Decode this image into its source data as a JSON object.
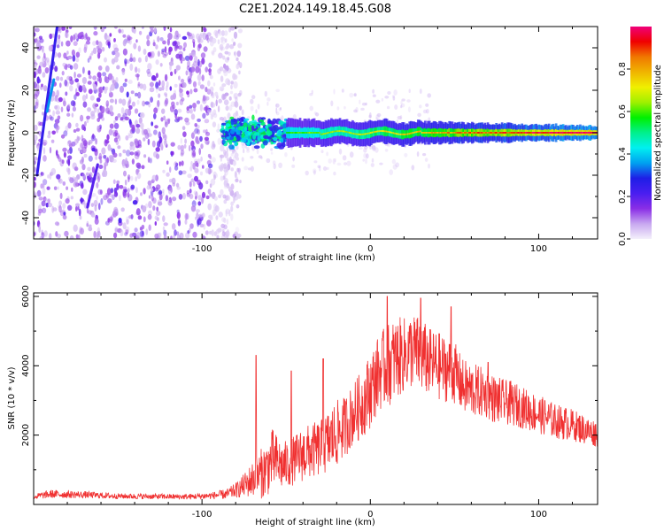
{
  "figure_title": "C2E1.2024.149.18.45.G08",
  "chart_data": [
    {
      "type": "heatmap",
      "panel": "spectrogram",
      "xlabel": "Height of straight line (km)",
      "ylabel": "Frequency (Hz)",
      "xlim": [
        -200,
        135
      ],
      "ylim": [
        -50,
        50
      ],
      "x_ticks": [
        -100,
        0,
        100
      ],
      "x_tick_labels": [
        "-100",
        "0",
        "100"
      ],
      "y_ticks": [
        -40,
        -20,
        0,
        20,
        40
      ],
      "y_tick_labels": [
        "-40",
        "-20",
        "0",
        "20",
        "40"
      ],
      "colorbar": {
        "label": "Normalized spectral amplitude",
        "range": [
          0,
          1
        ],
        "ticks": [
          0.0,
          0.2,
          0.4,
          0.6,
          0.8
        ],
        "tick_labels": [
          "0.0",
          "0.2",
          "0.4",
          "0.6",
          "0.8"
        ],
        "colormap": [
          "#f4f0fb",
          "#c8a8f0",
          "#8a2ee6",
          "#4a1ef0",
          "#1e1ee6",
          "#00a0f0",
          "#00f0f0",
          "#00f08c",
          "#00f000",
          "#a0f000",
          "#f0f000",
          "#f0b400",
          "#f07800",
          "#f00000",
          "#f0007a"
        ]
      },
      "regions": [
        {
          "name": "noise",
          "x_range": [
            -200,
            -85
          ],
          "y_range": [
            -50,
            50
          ],
          "amplitude_range": [
            0.05,
            0.2
          ]
        },
        {
          "name": "signal_onset",
          "x_range": [
            -88,
            -50
          ],
          "y_center": 0,
          "half_width_hz": 5,
          "amplitude_range": [
            0.2,
            0.55
          ]
        },
        {
          "name": "carrier",
          "x_range": [
            -50,
            135
          ],
          "y_center": 0,
          "half_width_hz": 2,
          "amplitude_range": [
            0.4,
            1.0
          ]
        }
      ],
      "streaks": [
        {
          "x": [
            -198,
            -186
          ],
          "y": [
            -20,
            50
          ],
          "amplitude": 0.25
        },
        {
          "x": [
            -192,
            -188
          ],
          "y": [
            10,
            25
          ],
          "amplitude": 0.35
        },
        {
          "x": [
            -168,
            -162
          ],
          "y": [
            -35,
            -15
          ],
          "amplitude": 0.2
        }
      ],
      "grid": false
    },
    {
      "type": "line",
      "panel": "snr",
      "xlabel": "Height of straight line (km)",
      "ylabel": "SNR (10 * v/v)",
      "xlim": [
        -200,
        135
      ],
      "ylim": [
        0,
        6100
      ],
      "x_ticks": [
        -100,
        0,
        100
      ],
      "x_tick_labels": [
        "-100",
        "0",
        "100"
      ],
      "y_ticks": [
        2000,
        4000,
        6000
      ],
      "y_tick_labels": [
        "2000",
        "4000",
        "6000"
      ],
      "series": [
        {
          "color": "#f03030",
          "x": [
            -200,
            -190,
            -170,
            -150,
            -130,
            -110,
            -95,
            -85,
            -78,
            -72,
            -66,
            -62,
            -58,
            -52,
            -46,
            -40,
            -34,
            -28,
            -22,
            -16,
            -10,
            -5,
            0,
            5,
            10,
            15,
            20,
            25,
            30,
            35,
            40,
            45,
            50,
            55,
            60,
            65,
            70,
            75,
            80,
            85,
            90,
            95,
            100,
            105,
            110,
            115,
            120,
            125,
            130,
            135
          ],
          "y": [
            220,
            300,
            280,
            240,
            230,
            220,
            250,
            300,
            450,
            650,
            850,
            1000,
            1300,
            1100,
            1250,
            1450,
            1550,
            1650,
            1950,
            2200,
            2600,
            2900,
            3300,
            3800,
            4000,
            4200,
            4300,
            4450,
            4300,
            4100,
            4000,
            3900,
            3800,
            3400,
            3300,
            3250,
            3150,
            3000,
            2950,
            2900,
            2800,
            2700,
            2600,
            2500,
            2400,
            2350,
            2300,
            2200,
            2100,
            2050
          ],
          "noise_amplitude": [
            80,
            120,
            100,
            80,
            80,
            80,
            100,
            150,
            250,
            450,
            700,
            800,
            900,
            700,
            700,
            800,
            800,
            850,
            1000,
            900,
            900,
            1000,
            1100,
            1100,
            1200,
            1200,
            1100,
            1100,
            1100,
            1000,
            1000,
            950,
            900,
            800,
            800,
            750,
            700,
            700,
            650,
            650,
            600,
            600,
            550,
            550,
            500,
            500,
            450,
            450,
            400,
            400
          ],
          "peaks": [
            {
              "x": -68,
              "y": 4300
            },
            {
              "x": -47,
              "y": 3850
            },
            {
              "x": -28,
              "y": 4200
            },
            {
              "x": 10,
              "y": 6000
            },
            {
              "x": 30,
              "y": 5950
            },
            {
              "x": 48,
              "y": 5700
            },
            {
              "x": 70,
              "y": 4100
            }
          ]
        }
      ],
      "grid": false
    }
  ]
}
